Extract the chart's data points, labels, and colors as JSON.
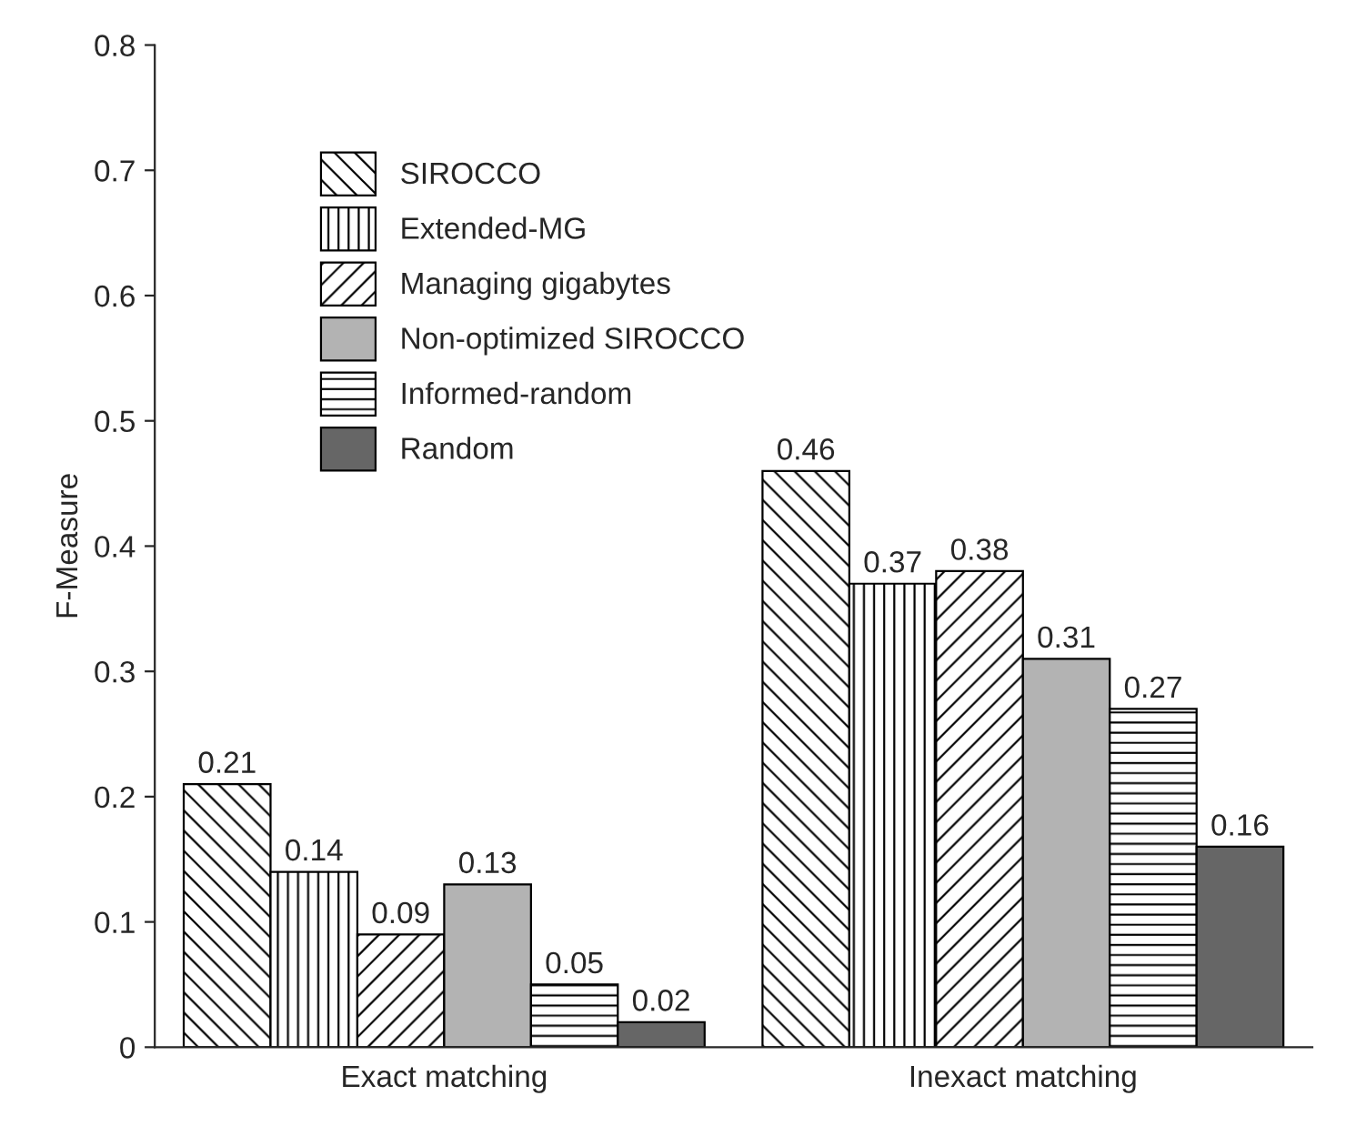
{
  "chart_data": {
    "type": "bar",
    "ylabel": "F-Measure",
    "categories": [
      "Exact matching",
      "Inexact matching"
    ],
    "series": [
      {
        "name": "SIROCCO",
        "color": "#000000",
        "values": [
          0.21,
          0.46
        ]
      },
      {
        "name": "Extended-MG",
        "color": "#000000",
        "values": [
          0.14,
          0.37
        ]
      },
      {
        "name": "Managing gigabytes",
        "color": "#000000",
        "values": [
          0.09,
          0.38
        ]
      },
      {
        "name": "Non-optimized SIROCCO",
        "color": "#b3b3b3",
        "values": [
          0.13,
          0.31
        ]
      },
      {
        "name": "Informed-random",
        "color": "#000000",
        "values": [
          0.05,
          0.27
        ]
      },
      {
        "name": "Random",
        "color": "#666666",
        "values": [
          0.02,
          0.16
        ]
      }
    ],
    "ylim": [
      0,
      0.8
    ],
    "yticks": [
      {
        "value": 0,
        "label": "0"
      },
      0.1,
      0.2,
      0.3,
      0.4,
      0.5,
      0.6,
      0.7,
      0.8
    ],
    "data_labels": true,
    "legend": "top left",
    "grid": false
  }
}
